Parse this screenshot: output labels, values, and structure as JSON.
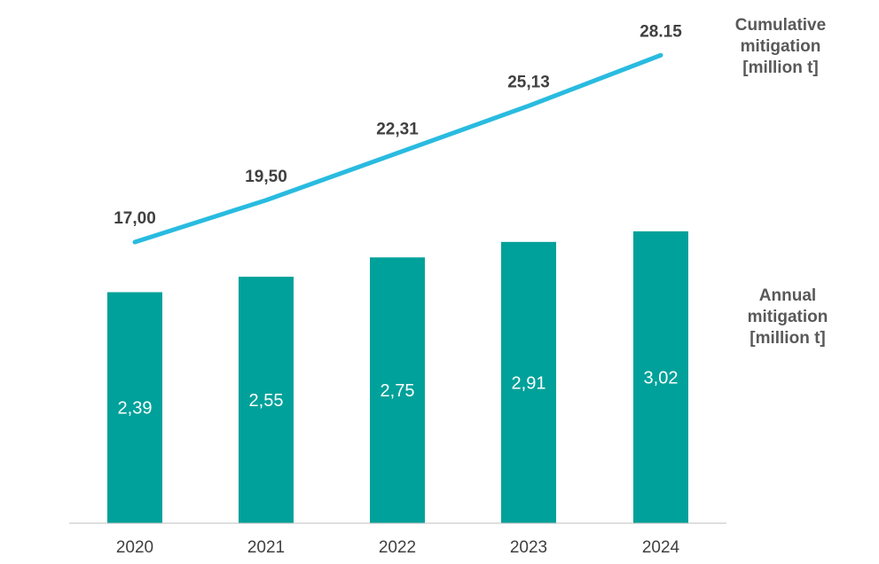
{
  "chart_data": {
    "type": "bar",
    "categories": [
      "2020",
      "2021",
      "2022",
      "2023",
      "2024"
    ],
    "series": [
      {
        "name": "Annual mitigation [million t]",
        "type": "bar",
        "values": [
          2.39,
          2.55,
          2.75,
          2.91,
          3.02
        ],
        "labels": [
          "2,39",
          "2,55",
          "2,75",
          "2,91",
          "3,02"
        ],
        "color": "#00A19A"
      },
      {
        "name": "Cumulative mitigation [million t]",
        "type": "line",
        "values": [
          17.0,
          19.5,
          22.31,
          25.13,
          28.15
        ],
        "labels": [
          "17,00",
          "19,50",
          "22,31",
          "25,13",
          "28.15"
        ],
        "color": "#29BBE0"
      }
    ],
    "grid": false,
    "legend_placement": "right"
  },
  "legend": {
    "cumulative": [
      "Cumulative",
      "mitigation",
      "[million t]"
    ],
    "annual": [
      "Annual",
      "mitigation",
      "[million t]"
    ]
  },
  "colors": {
    "bar": "#00A19A",
    "line": "#29BBE0",
    "axis": "#BFBFBF",
    "text": "#404040",
    "legend_text": "#595959"
  }
}
